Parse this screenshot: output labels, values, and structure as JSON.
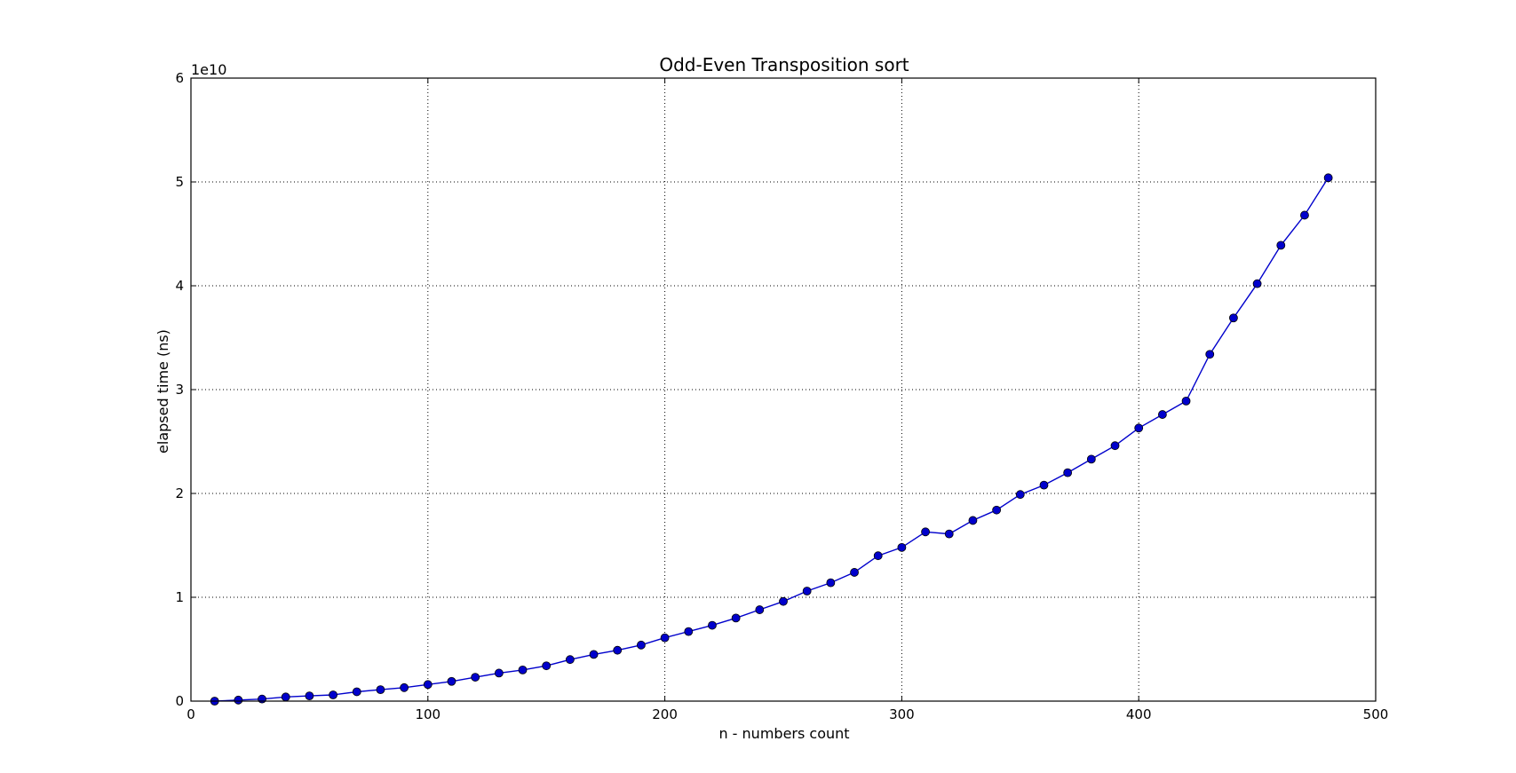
{
  "chart_data": {
    "type": "line",
    "title": "Odd-Even Transposition sort",
    "xlabel": "n - numbers count",
    "ylabel": "elapsed time (ns)",
    "y_offset_label": "1e10",
    "xlim": [
      0,
      500
    ],
    "ylim": [
      0,
      6
    ],
    "xticks": [
      0,
      100,
      200,
      300,
      400,
      500
    ],
    "yticks": [
      0,
      1,
      2,
      3,
      4,
      5,
      6
    ],
    "y_scale_note": "values in units of 1e10 ns",
    "grid": true,
    "series": [
      {
        "color": "#0000cc",
        "marker": "circle",
        "x": [
          10,
          20,
          30,
          40,
          50,
          60,
          70,
          80,
          90,
          100,
          110,
          120,
          130,
          140,
          150,
          160,
          170,
          180,
          190,
          200,
          210,
          220,
          230,
          240,
          250,
          260,
          270,
          280,
          290,
          300,
          310,
          320,
          330,
          340,
          350,
          360,
          370,
          380,
          390,
          400,
          410,
          420,
          430,
          440,
          450,
          460,
          470,
          480
        ],
        "y": [
          0.0,
          0.01,
          0.02,
          0.04,
          0.05,
          0.06,
          0.09,
          0.11,
          0.13,
          0.16,
          0.19,
          0.23,
          0.27,
          0.3,
          0.34,
          0.4,
          0.45,
          0.49,
          0.54,
          0.61,
          0.67,
          0.73,
          0.8,
          0.88,
          0.96,
          1.06,
          1.14,
          1.24,
          1.4,
          1.48,
          1.63,
          1.61,
          1.74,
          1.84,
          1.99,
          2.08,
          2.2,
          2.33,
          2.46,
          2.63,
          2.76,
          2.89,
          3.34,
          3.69,
          4.02,
          4.39,
          4.68,
          5.04
        ]
      }
    ]
  }
}
